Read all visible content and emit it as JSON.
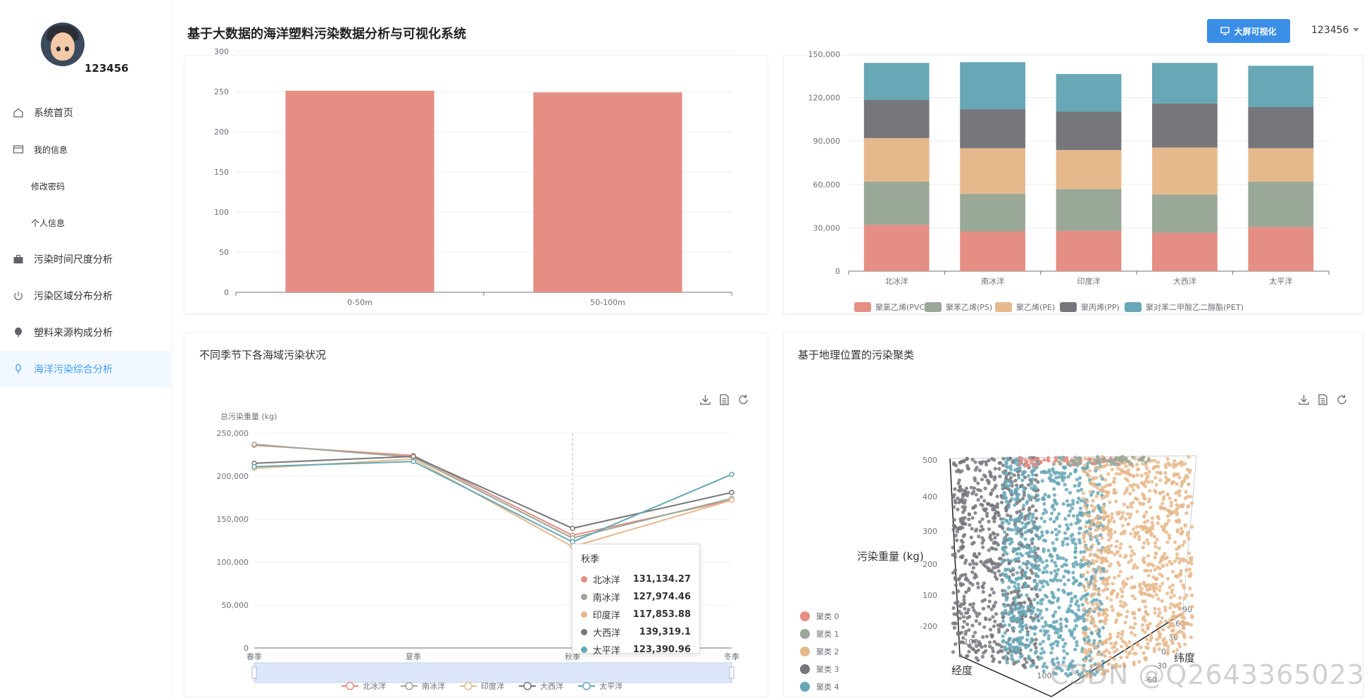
{
  "sidebar": {
    "username": "123456",
    "items": [
      {
        "label": "系统首页"
      },
      {
        "label": "我的信息"
      },
      {
        "label": "修改密码"
      },
      {
        "label": "个人信息"
      },
      {
        "label": "污染时间尺度分析"
      },
      {
        "label": "污染区域分布分析"
      },
      {
        "label": "塑料来源构成分析"
      },
      {
        "label": "海洋污染综合分析"
      }
    ],
    "active_color": "#409eff"
  },
  "header": {
    "title": "基于大数据的海洋塑料污染数据分析与可视化系统",
    "bigscreen_button": "大屏可视化",
    "user": "123456"
  },
  "chart_data": [
    {
      "type": "bar",
      "categories": [
        "0-50m",
        "50-100m"
      ],
      "values": [
        251,
        249
      ],
      "ylim": [
        0,
        300
      ],
      "yticks": [
        "0",
        "50",
        "100",
        "150",
        "200",
        "250",
        "300"
      ],
      "color": "#e58e84"
    },
    {
      "type": "bar",
      "stacked": true,
      "categories": [
        "北冰洋",
        "南冰洋",
        "印度洋",
        "大西洋",
        "太平洋"
      ],
      "ylim": [
        0,
        150000
      ],
      "yticks": [
        "0",
        "30,000",
        "60,000",
        "90,000",
        "120,000",
        "150,000"
      ],
      "series": [
        {
          "name": "聚氯乙烯(PVC)",
          "color": "#e58e84",
          "values": [
            32000,
            27500,
            27800,
            26500,
            30500
          ]
        },
        {
          "name": "聚苯乙烯(PS)",
          "color": "#9aa898",
          "values": [
            30000,
            26000,
            29000,
            26500,
            31500
          ]
        },
        {
          "name": "聚乙烯(PE)",
          "color": "#e6b98c",
          "values": [
            30000,
            31500,
            27000,
            32500,
            23000
          ]
        },
        {
          "name": "聚丙烯(PP)",
          "color": "#76777c",
          "values": [
            26500,
            27000,
            26500,
            30500,
            28500
          ]
        },
        {
          "name": "聚对苯二甲酸乙二醇酯(PET)",
          "color": "#67a7b6",
          "values": [
            25500,
            32500,
            26000,
            28000,
            28500
          ]
        }
      ]
    },
    {
      "type": "line",
      "title": "不同季节下各海域污染状况",
      "ylabel": "总污染重量 (kg)",
      "categories": [
        "春季",
        "夏季",
        "秋季",
        "冬季"
      ],
      "ylim": [
        0,
        250000
      ],
      "yticks": [
        "0",
        "50,000",
        "100,000",
        "150,000",
        "200,000",
        "250,000"
      ],
      "series": [
        {
          "name": "北冰洋",
          "color": "#e58e84",
          "values": [
            236000,
            224000,
            131134.27,
            172000
          ]
        },
        {
          "name": "南冰洋",
          "color": "#9aa898",
          "values": [
            237000,
            222000,
            127974.46,
            174000
          ]
        },
        {
          "name": "印度洋",
          "color": "#e6b98c",
          "values": [
            209000,
            220000,
            117853.88,
            172000
          ]
        },
        {
          "name": "大西洋",
          "color": "#76777c",
          "values": [
            215000,
            223000,
            139319.1,
            181000
          ]
        },
        {
          "name": "太平洋",
          "color": "#67a7b6",
          "values": [
            211000,
            217000,
            123390.96,
            202000
          ]
        }
      ],
      "tooltip": {
        "title": "秋季",
        "rows": [
          {
            "name": "北冰洋",
            "value": "131,134.27",
            "color": "#e58e84"
          },
          {
            "name": "南冰洋",
            "value": "127,974.46",
            "color": "#9aa898"
          },
          {
            "name": "印度洋",
            "value": "117,853.88",
            "color": "#e6b98c"
          },
          {
            "name": "大西洋",
            "value": "139,319.1",
            "color": "#76777c"
          },
          {
            "name": "太平洋",
            "value": "123,390.96",
            "color": "#67a7b6"
          }
        ]
      }
    },
    {
      "type": "scatter",
      "dimension": "3d",
      "title": "基于地理位置的污染聚类",
      "zlabel": "污染重量 (kg)",
      "xlabel": "经度",
      "ylabel": "纬度",
      "zticks": [
        "500",
        "400",
        "300",
        "200",
        "100",
        "-200"
      ],
      "xticks": [
        "-100",
        "0",
        "100"
      ],
      "yticks": [
        "90",
        "60",
        "30",
        "0",
        "-30",
        "-60"
      ],
      "series": [
        {
          "name": "聚类 0",
          "color": "#e58e84"
        },
        {
          "name": "聚类 1",
          "color": "#9aa898"
        },
        {
          "name": "聚类 2",
          "color": "#e6b98c"
        },
        {
          "name": "聚类 3",
          "color": "#76777c"
        },
        {
          "name": "聚类 4",
          "color": "#67a7b6"
        }
      ]
    }
  ],
  "watermark": "CSDN @Q2643365023"
}
